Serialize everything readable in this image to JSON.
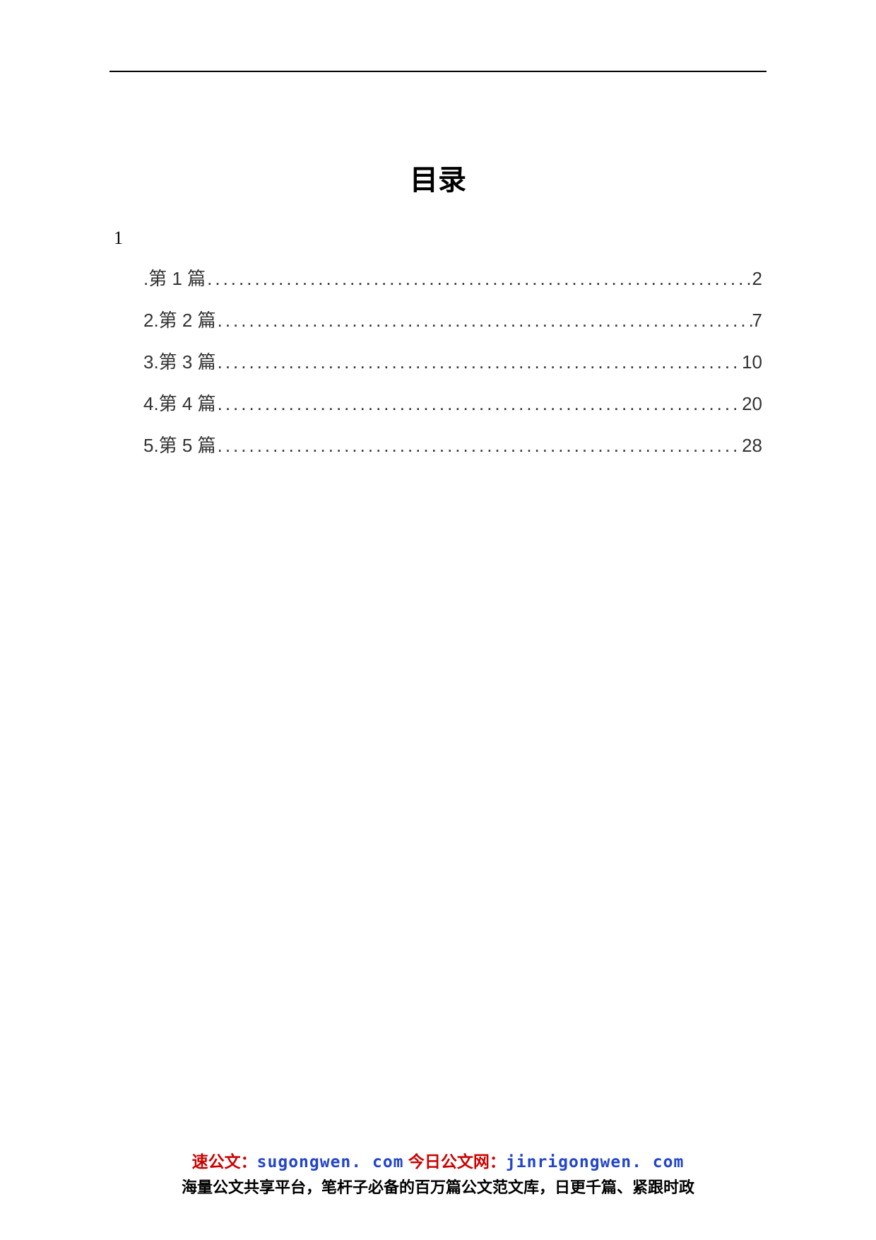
{
  "title": "目录",
  "section_number": "1",
  "toc": {
    "entries": [
      {
        "label": ".第 1 篇",
        "page": "2"
      },
      {
        "label": "2.第 2 篇",
        "page": "7"
      },
      {
        "label": "3.第 3 篇",
        "page": "10"
      },
      {
        "label": "4.第 4 篇",
        "page": "20"
      },
      {
        "label": "5.第 5 篇",
        "page": "28"
      }
    ]
  },
  "footer": {
    "brand1_name": "速公文：",
    "brand1_url": "sugongwen. com",
    "brand2_name": " 今日公文网：",
    "brand2_url": "jinrigongwen. com",
    "tagline": "海量公文共享平台，笔杆子必备的百万篇公文范文库，日更千篇、紧跟时政"
  },
  "colors": {
    "text": "#000000",
    "toc_text": "#333333",
    "brand_red": "#cc0000",
    "brand_blue": "#2244cc",
    "background": "#ffffff"
  },
  "typography": {
    "title_fontsize": 40,
    "body_fontsize": 26,
    "footer_fontsize": 23
  }
}
